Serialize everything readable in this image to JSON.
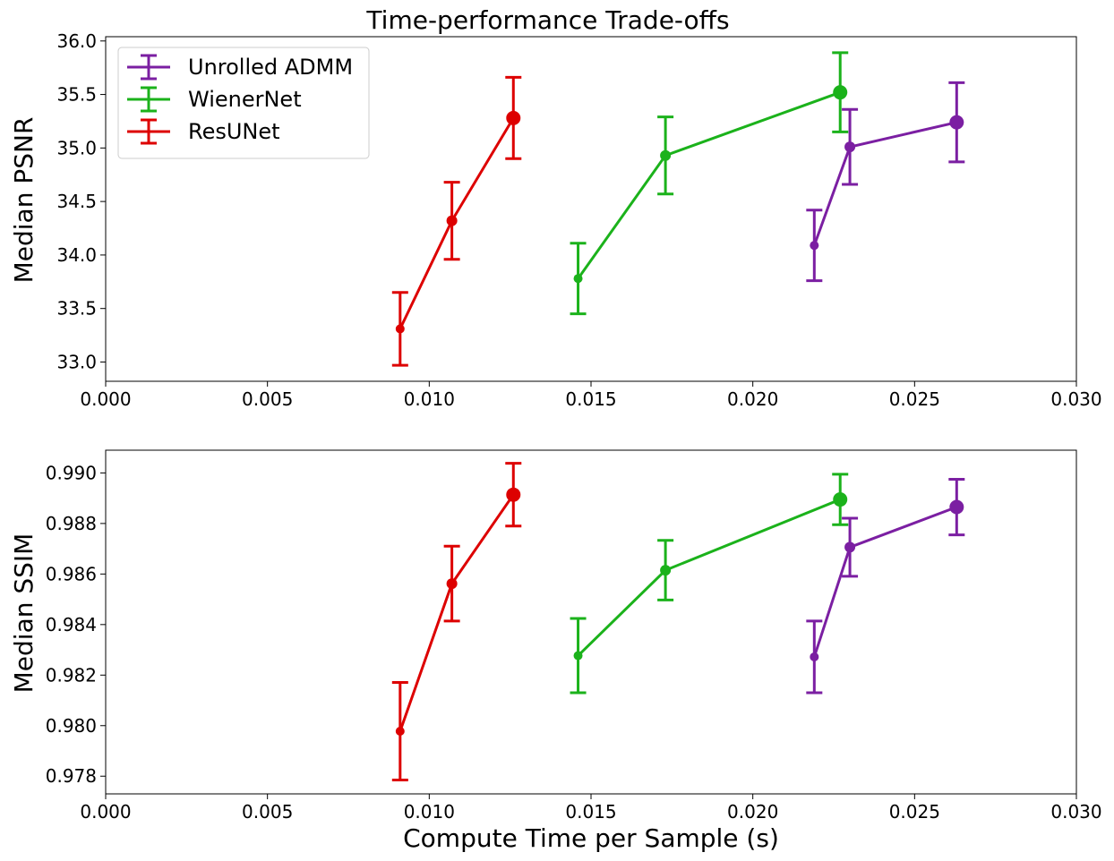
{
  "figure": {
    "title": "Time-performance Trade-offs",
    "xlabel": "Compute Time per Sample (s)"
  },
  "chart_data": [
    {
      "type": "line",
      "error_bars": true,
      "title": "Time-performance Trade-offs",
      "ylabel": "Median PSNR",
      "xlim": [
        0,
        0.03
      ],
      "ylim": [
        32.82,
        36.04
      ],
      "xticks": [
        0.0,
        0.005,
        0.01,
        0.015,
        0.02,
        0.025,
        0.03
      ],
      "xtick_labels": [
        "0.000",
        "0.005",
        "0.010",
        "0.015",
        "0.020",
        "0.025",
        "0.030"
      ],
      "yticks": [
        33.0,
        33.5,
        34.0,
        34.5,
        35.0,
        35.5,
        36.0
      ],
      "ytick_labels": [
        "33.0",
        "33.5",
        "34.0",
        "34.5",
        "35.0",
        "35.5",
        "36.0"
      ],
      "legend": {
        "position": "top-left"
      },
      "grid": false,
      "series": [
        {
          "name": "Unrolled ADMM",
          "color": "#7b1fa2",
          "x": [
            0.0219,
            0.023,
            0.0263
          ],
          "y": [
            34.09,
            35.01,
            35.24
          ],
          "err": [
            0.33,
            0.35,
            0.37
          ]
        },
        {
          "name": "WienerNet",
          "color": "#1bb21b",
          "x": [
            0.0146,
            0.0173,
            0.0227
          ],
          "y": [
            33.78,
            34.93,
            35.52
          ],
          "err": [
            0.33,
            0.36,
            0.37
          ]
        },
        {
          "name": "ResUNet",
          "color": "#dd0000",
          "x": [
            0.0091,
            0.0107,
            0.0126
          ],
          "y": [
            33.31,
            34.32,
            35.28
          ],
          "err": [
            0.34,
            0.36,
            0.38
          ]
        }
      ]
    },
    {
      "type": "line",
      "error_bars": true,
      "ylabel": "Median SSIM",
      "xlabel": "Compute Time per Sample (s)",
      "xlim": [
        0,
        0.03
      ],
      "ylim": [
        0.9773,
        0.9909
      ],
      "xticks": [
        0.0,
        0.005,
        0.01,
        0.015,
        0.02,
        0.025,
        0.03
      ],
      "xtick_labels": [
        "0.000",
        "0.005",
        "0.010",
        "0.015",
        "0.020",
        "0.025",
        "0.030"
      ],
      "yticks": [
        0.978,
        0.98,
        0.982,
        0.984,
        0.986,
        0.988,
        0.99
      ],
      "ytick_labels": [
        "0.978",
        "0.980",
        "0.982",
        "0.984",
        "0.986",
        "0.988",
        "0.990"
      ],
      "grid": false,
      "series": [
        {
          "name": "Unrolled ADMM",
          "color": "#7b1fa2",
          "x": [
            0.0219,
            0.023,
            0.0263
          ],
          "y": [
            0.98272,
            0.98706,
            0.98865
          ],
          "err": [
            0.00142,
            0.00115,
            0.0011
          ]
        },
        {
          "name": "WienerNet",
          "color": "#1bb21b",
          "x": [
            0.0146,
            0.0173,
            0.0227
          ],
          "y": [
            0.98277,
            0.98615,
            0.98895
          ],
          "err": [
            0.00147,
            0.00118,
            0.001
          ]
        },
        {
          "name": "ResUNet",
          "color": "#dd0000",
          "x": [
            0.0091,
            0.0107,
            0.0126
          ],
          "y": [
            0.97978,
            0.98562,
            0.98914
          ],
          "err": [
            0.00193,
            0.00148,
            0.00124
          ]
        }
      ]
    }
  ]
}
